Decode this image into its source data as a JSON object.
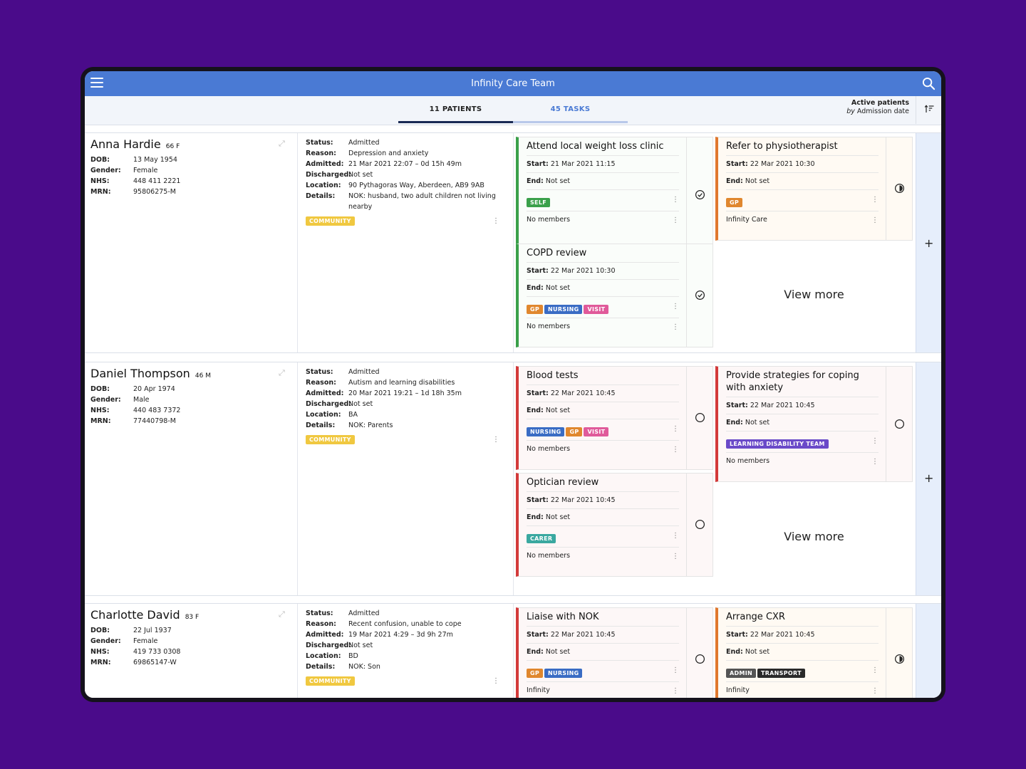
{
  "app": {
    "title": "Infinity Care Team"
  },
  "tabs": {
    "patients": "11 PATIENTS",
    "tasks": "45 TASKS"
  },
  "sort": {
    "line1": "Active patients",
    "by": "by",
    "line2": "Admission date"
  },
  "labels": {
    "dob": "DOB:",
    "gender": "Gender:",
    "nhs": "NHS:",
    "mrn": "MRN:",
    "status": "Status:",
    "reason": "Reason:",
    "admitted": "Admitted:",
    "discharged": "Discharged:",
    "location": "Location:",
    "details": "Details:",
    "start": "Start:",
    "end": "End:",
    "view_more": "View more"
  },
  "patients": [
    {
      "name": "Anna Hardie",
      "age_sex": "66 F",
      "dob": "13 May 1954",
      "gender": "Female",
      "nhs": "448 411 2221",
      "mrn": "95806275-M",
      "status": "Admitted",
      "reason": "Depression and anxiety",
      "admitted": "21 Mar 2021 22:07 – 0d 15h 49m",
      "discharged": "Not set",
      "location": "90 Pythagoras Way, Aberdeen, AB9 9AB",
      "details": "NOK: husband, two adult children not living nearby",
      "team": "COMMUNITY",
      "tasks": [
        {
          "title": "Attend local weight loss clinic",
          "start": "21 Mar 2021 11:15",
          "end": "Not set",
          "tags": [
            "SELF"
          ],
          "members": "No members",
          "state": "done"
        },
        {
          "title": "Refer to physiotherapist",
          "start": "22 Mar 2021 10:30",
          "end": "Not set",
          "tags": [
            "GP"
          ],
          "members": "Infinity Care",
          "state": "in-progress"
        },
        {
          "title": "COPD review",
          "start": "22 Mar 2021 10:30",
          "end": "Not set",
          "tags": [
            "GP",
            "NURSING",
            "VISIT"
          ],
          "members": "No members",
          "state": "done"
        }
      ]
    },
    {
      "name": "Daniel Thompson",
      "age_sex": "46 M",
      "dob": "20 Apr 1974",
      "gender": "Male",
      "nhs": "440 483 7372",
      "mrn": "77440798-M",
      "status": "Admitted",
      "reason": "Autism and learning disabilities",
      "admitted": "20 Mar 2021 19:21 – 1d 18h 35m",
      "discharged": "Not set",
      "location": "BA",
      "details": "NOK: Parents",
      "team": "COMMUNITY",
      "tasks": [
        {
          "title": "Blood tests",
          "start": "22 Mar 2021 10:45",
          "end": "Not set",
          "tags": [
            "NURSING",
            "GP",
            "VISIT"
          ],
          "members": "No members",
          "state": "todo"
        },
        {
          "title": "Provide strategies for coping with anxiety",
          "start": "22 Mar 2021 10:45",
          "end": "Not set",
          "tags": [
            "LEARNING DISABILITY TEAM"
          ],
          "members": "No members",
          "state": "todo"
        },
        {
          "title": "Optician review",
          "start": "22 Mar 2021 10:45",
          "end": "Not set",
          "tags": [
            "CARER"
          ],
          "members": "No members",
          "state": "todo"
        }
      ]
    },
    {
      "name": "Charlotte David",
      "age_sex": "83 F",
      "dob": "22 Jul 1937",
      "gender": "Female",
      "nhs": "419 733 0308",
      "mrn": "69865147-W",
      "status": "Admitted",
      "reason": "Recent confusion, unable to cope",
      "admitted": "19 Mar 2021 4:29 – 3d 9h 27m",
      "discharged": "Not set",
      "location": "BD",
      "details": "NOK: Son",
      "team": "COMMUNITY",
      "tasks": [
        {
          "title": "Liaise with NOK",
          "start": "22 Mar 2021 10:45",
          "end": "Not set",
          "tags": [
            "GP",
            "NURSING"
          ],
          "members": "Infinity",
          "state": "todo"
        },
        {
          "title": "Arrange CXR",
          "start": "22 Mar 2021 10:45",
          "end": "Not set",
          "tags": [
            "ADMIN",
            "TRANSPORT"
          ],
          "members": "Infinity",
          "state": "in-progress"
        }
      ]
    }
  ],
  "tag_colors": {
    "SELF": "#3aa04a",
    "GP": "#e0872e",
    "NURSING": "#3a6cc4",
    "VISIT": "#e05a9a",
    "LEARNING DISABILITY TEAM": "#6a4ac8",
    "CARER": "#3aa8a0",
    "ADMIN": "#555555",
    "TRANSPORT": "#2a2a2a"
  },
  "colors": {
    "header": "#4a7ad4",
    "background": "#4a0b8a",
    "community": "#f0c840"
  }
}
